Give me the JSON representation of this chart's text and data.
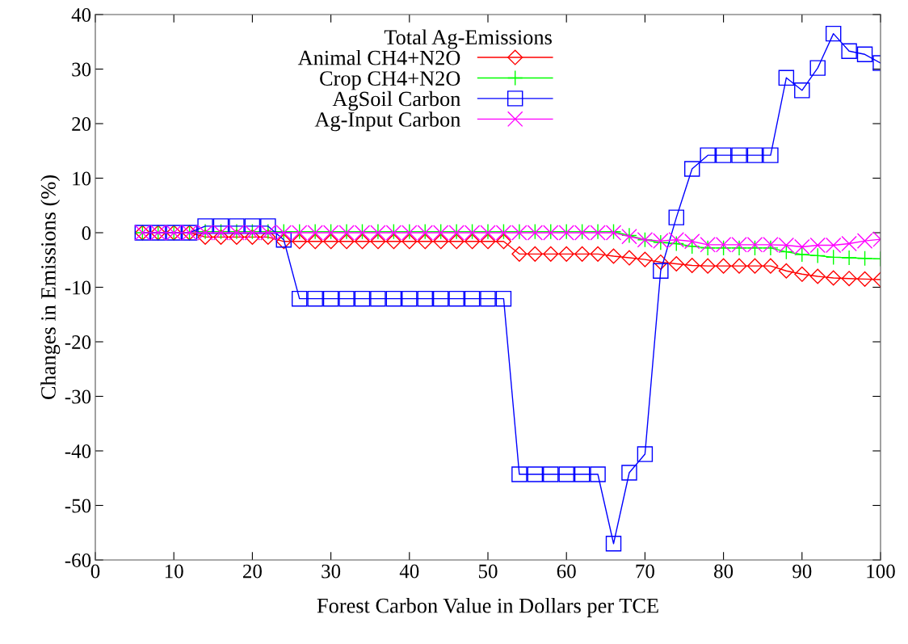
{
  "chart_data": {
    "type": "line",
    "xlabel": "Forest Carbon Value in Dollars per TCE",
    "ylabel": "Changes in Emissions (%)",
    "legend_title": "Total Ag-Emissions",
    "legend": "top",
    "grid": false,
    "x": [
      6,
      8,
      10,
      12,
      14,
      16,
      18,
      20,
      22,
      24,
      26,
      28,
      30,
      32,
      34,
      36,
      38,
      40,
      42,
      44,
      46,
      48,
      50,
      52,
      54,
      56,
      58,
      60,
      62,
      64,
      66,
      68,
      70,
      72,
      74,
      76,
      78,
      80,
      82,
      84,
      86,
      88,
      90,
      92,
      94,
      96,
      98,
      100
    ],
    "xlim": [
      0,
      100
    ],
    "xticks": [
      0,
      10,
      20,
      30,
      40,
      50,
      60,
      70,
      80,
      90,
      100
    ],
    "ylim": [
      -60,
      40
    ],
    "yticks": [
      -60,
      -50,
      -40,
      -30,
      -20,
      -10,
      0,
      10,
      20,
      30,
      40
    ],
    "series": [
      {
        "name": "Animal CH4+N2O",
        "color": "#ff0000",
        "marker": "diamond",
        "values": [
          0,
          0,
          0,
          0,
          -0.8,
          -0.8,
          -0.8,
          -0.8,
          -0.8,
          -1.6,
          -1.6,
          -1.6,
          -1.6,
          -1.6,
          -1.6,
          -1.6,
          -1.6,
          -1.6,
          -1.6,
          -1.6,
          -1.6,
          -1.6,
          -1.6,
          -1.6,
          -3.9,
          -3.9,
          -3.9,
          -3.9,
          -3.9,
          -3.9,
          -4.3,
          -4.6,
          -4.9,
          -5.4,
          -5.7,
          -6.0,
          -6.1,
          -6.1,
          -6.1,
          -6.1,
          -6.1,
          -7.0,
          -7.6,
          -8.0,
          -8.3,
          -8.4,
          -8.5,
          -8.6
        ]
      },
      {
        "name": "Crop CH4+N2O",
        "color": "#00ff00",
        "marker": "cross",
        "values": [
          0,
          0,
          0,
          0,
          0.2,
          0.2,
          0.2,
          0.2,
          0.2,
          0.2,
          0.2,
          0.2,
          0.2,
          0.2,
          0.2,
          0.2,
          0.2,
          0.2,
          0.2,
          0.2,
          0.2,
          0.2,
          0.2,
          0.2,
          0.2,
          0.2,
          0.2,
          0.2,
          0.2,
          0.2,
          0.2,
          -0.5,
          -1.3,
          -1.8,
          -2.0,
          -2.5,
          -2.8,
          -2.8,
          -2.8,
          -2.8,
          -2.8,
          -3.5,
          -4.0,
          -4.2,
          -4.5,
          -4.6,
          -4.7,
          -4.8
        ]
      },
      {
        "name": "AgSoil Carbon",
        "color": "#0000ff",
        "marker": "square",
        "values": [
          0,
          0,
          0,
          0,
          1.2,
          1.2,
          1.2,
          1.2,
          1.2,
          -1.3,
          -12.1,
          -12.1,
          -12.1,
          -12.1,
          -12.1,
          -12.1,
          -12.1,
          -12.1,
          -12.1,
          -12.1,
          -12.1,
          -12.1,
          -12.1,
          -12.1,
          -44.3,
          -44.3,
          -44.3,
          -44.3,
          -44.3,
          -44.3,
          -57.0,
          -44.0,
          -40.6,
          -7.0,
          2.8,
          11.7,
          14.2,
          14.2,
          14.2,
          14.2,
          14.2,
          28.4,
          26.1,
          30.2,
          36.5,
          33.3,
          32.7,
          31.1
        ]
      },
      {
        "name": "Ag-Input Carbon",
        "color": "#ff00ff",
        "marker": "x",
        "values": [
          0,
          0,
          0,
          0,
          0,
          0,
          0,
          0,
          0,
          0,
          0,
          0,
          0,
          0,
          0,
          0,
          0,
          0,
          0,
          0,
          0,
          0,
          0,
          0,
          0,
          0,
          0,
          0,
          0,
          0,
          0,
          -0.7,
          -1.3,
          -1.5,
          -1.3,
          -1.6,
          -2.2,
          -2.2,
          -2.2,
          -2.2,
          -2.2,
          -2.3,
          -2.6,
          -2.3,
          -2.3,
          -2.0,
          -1.5,
          -1.2
        ]
      }
    ]
  }
}
